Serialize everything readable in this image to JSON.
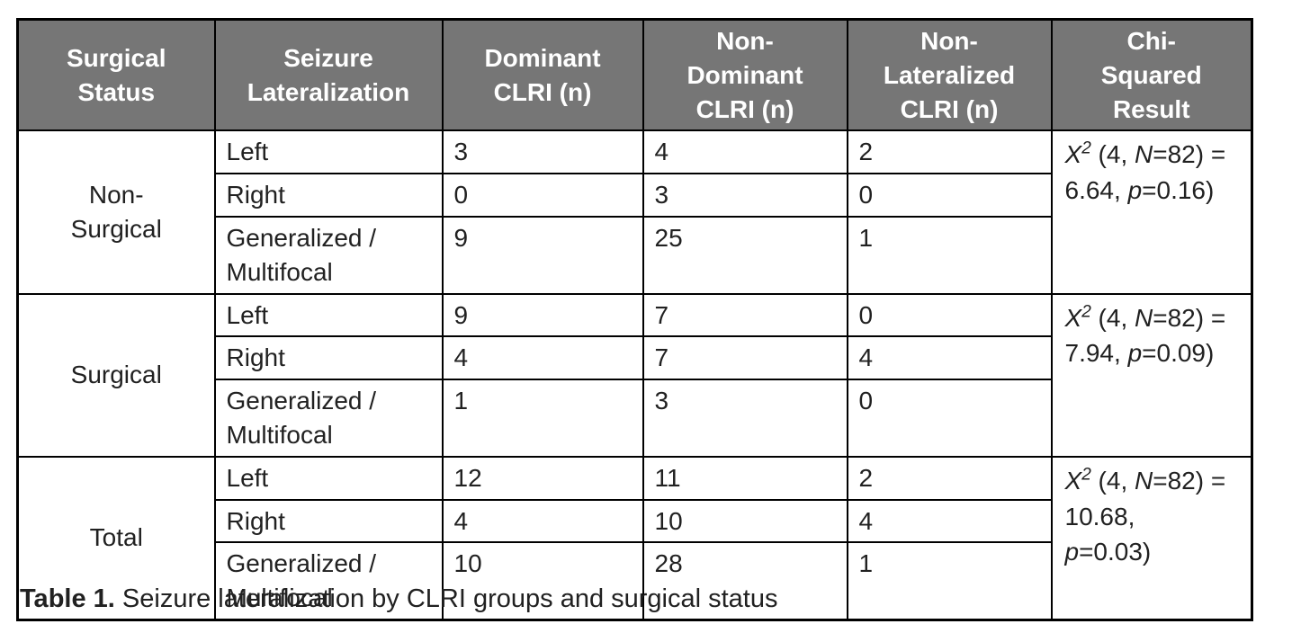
{
  "colors": {
    "header_bg": "#767676",
    "header_text": "#ffffff",
    "body_text": "#212121",
    "border": "#000000",
    "page_bg": "#ffffff"
  },
  "table": {
    "headers": [
      "Surgical\nStatus",
      "Seizure\nLateralization",
      "Dominant\nCLRI (n)",
      "Non-\nDominant\nCLRI (n)",
      "Non-\nLateralized\nCLRI (n)",
      "Chi-\nSquared\nResult"
    ],
    "groups": [
      {
        "status": "Non-\nSurgical",
        "rows": [
          {
            "lateralization": "Left",
            "dominant": "3",
            "non_dominant": "4",
            "non_lateralized": "2"
          },
          {
            "lateralization": "Right",
            "dominant": "0",
            "non_dominant": "3",
            "non_lateralized": "0"
          },
          {
            "lateralization": "Generalized /\nMultifocal",
            "dominant": "9",
            "non_dominant": "25",
            "non_lateralized": "1"
          }
        ],
        "chi_segments": [
          {
            "t": "X",
            "i": true
          },
          {
            "t": "2",
            "sup": true
          },
          {
            "t": " (4, "
          },
          {
            "t": "N",
            "i": true
          },
          {
            "t": "=82) = "
          },
          {
            "t": "6.64, ",
            "br": true
          },
          {
            "t": "p",
            "i": true
          },
          {
            "t": "=0.16)"
          }
        ]
      },
      {
        "status": "Surgical",
        "rows": [
          {
            "lateralization": "Left",
            "dominant": "9",
            "non_dominant": "7",
            "non_lateralized": "0"
          },
          {
            "lateralization": "Right",
            "dominant": "4",
            "non_dominant": "7",
            "non_lateralized": "4"
          },
          {
            "lateralization": "Generalized /\nMultifocal",
            "dominant": "1",
            "non_dominant": "3",
            "non_lateralized": "0"
          }
        ],
        "chi_segments": [
          {
            "t": "X",
            "i": true
          },
          {
            "t": "2",
            "sup": true
          },
          {
            "t": " (4, "
          },
          {
            "t": "N",
            "i": true
          },
          {
            "t": "=82) = "
          },
          {
            "t": "7.94, ",
            "br": true
          },
          {
            "t": "p",
            "i": true
          },
          {
            "t": "=0.09)"
          }
        ]
      },
      {
        "status": "Total",
        "rows": [
          {
            "lateralization": "Left",
            "dominant": "12",
            "non_dominant": "11",
            "non_lateralized": "2"
          },
          {
            "lateralization": "Right",
            "dominant": "4",
            "non_dominant": "10",
            "non_lateralized": "4"
          },
          {
            "lateralization": "Generalized /\nMultifocal",
            "dominant": "10",
            "non_dominant": "28",
            "non_lateralized": "1"
          }
        ],
        "chi_segments": [
          {
            "t": "X",
            "i": true
          },
          {
            "t": "2",
            "sup": true
          },
          {
            "t": " (4, "
          },
          {
            "t": "N",
            "i": true
          },
          {
            "t": "=82) = "
          },
          {
            "t": "10.68,",
            "br": true
          },
          {
            "t": "p",
            "i": true,
            "br": true
          },
          {
            "t": "=0.03)"
          }
        ]
      }
    ]
  },
  "caption": {
    "label": "Table 1.",
    "text": " Seizure lateralization by CLRI groups and surgical status"
  },
  "chart_data": {
    "type": "table",
    "title": "Table 1. Seizure lateralization by CLRI groups and surgical status",
    "columns": [
      "Surgical Status",
      "Seizure Lateralization",
      "Dominant CLRI (n)",
      "Non-Dominant CLRI (n)",
      "Non-Lateralized CLRI (n)",
      "Chi-Squared Result"
    ],
    "rows": [
      [
        "Non-Surgical",
        "Left",
        3,
        4,
        2,
        "X2 (4, N=82) = 6.64, p=0.16)"
      ],
      [
        "Non-Surgical",
        "Right",
        0,
        3,
        0,
        "X2 (4, N=82) = 6.64, p=0.16)"
      ],
      [
        "Non-Surgical",
        "Generalized / Multifocal",
        9,
        25,
        1,
        "X2 (4, N=82) = 6.64, p=0.16)"
      ],
      [
        "Surgical",
        "Left",
        9,
        7,
        0,
        "X2 (4, N=82) = 7.94, p=0.09)"
      ],
      [
        "Surgical",
        "Right",
        4,
        7,
        4,
        "X2 (4, N=82) = 7.94, p=0.09)"
      ],
      [
        "Surgical",
        "Generalized / Multifocal",
        1,
        3,
        0,
        "X2 (4, N=82) = 7.94, p=0.09)"
      ],
      [
        "Total",
        "Left",
        12,
        11,
        2,
        "X2 (4, N=82) = 10.68, p=0.03)"
      ],
      [
        "Total",
        "Right",
        4,
        10,
        4,
        "X2 (4, N=82) = 10.68, p=0.03)"
      ],
      [
        "Total",
        "Generalized / Multifocal",
        10,
        28,
        1,
        "X2 (4, N=82) = 10.68, p=0.03)"
      ]
    ]
  }
}
